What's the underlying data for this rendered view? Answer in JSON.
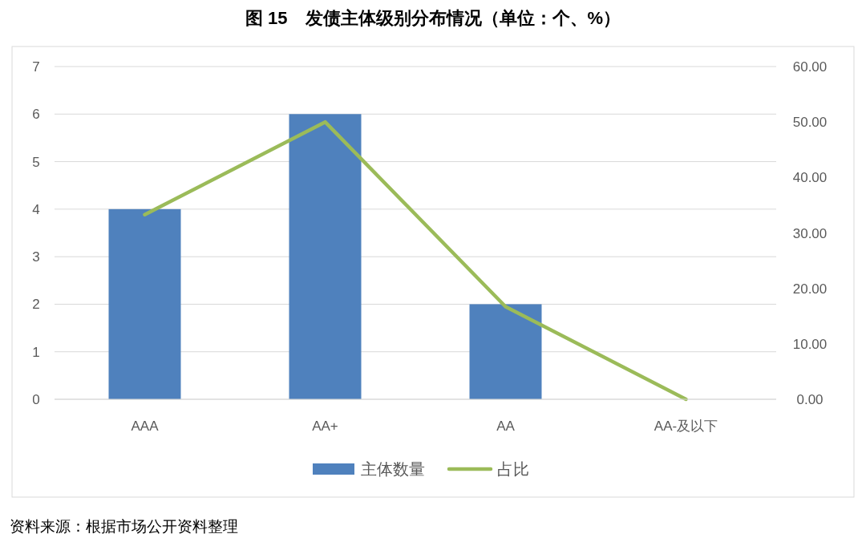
{
  "chart_data": {
    "type": "bar",
    "title": "图 15　发债主体级别分布情况（单位：个、%）",
    "categories": [
      "AAA",
      "AA+",
      "AA",
      "AA-及以下"
    ],
    "series": [
      {
        "name": "主体数量",
        "color": "#4f81bd",
        "values": [
          4,
          6,
          2,
          0
        ]
      },
      {
        "name": "占比",
        "type": "line",
        "axis": "y2",
        "color": "#9bbb59",
        "values": [
          33.3,
          50,
          16.7,
          0
        ]
      }
    ],
    "ylim": [
      0,
      7
    ],
    "yticks": [
      0,
      1,
      2,
      3,
      4,
      5,
      6,
      7
    ],
    "y2lim": [
      0,
      60
    ],
    "y2ticks": [
      {
        "value": 0,
        "label": "0.00"
      },
      {
        "value": 10,
        "label": "10.00"
      },
      {
        "value": 20,
        "label": "20.00"
      },
      {
        "value": 30,
        "label": "30.00"
      },
      {
        "value": 40,
        "label": "40.00"
      },
      {
        "value": 50,
        "label": "50.00"
      },
      {
        "value": 60,
        "label": "60.00"
      }
    ],
    "grid": "y",
    "legend": "bottom",
    "annotations": [
      "资料来源：根据市场公开资料整理"
    ]
  }
}
